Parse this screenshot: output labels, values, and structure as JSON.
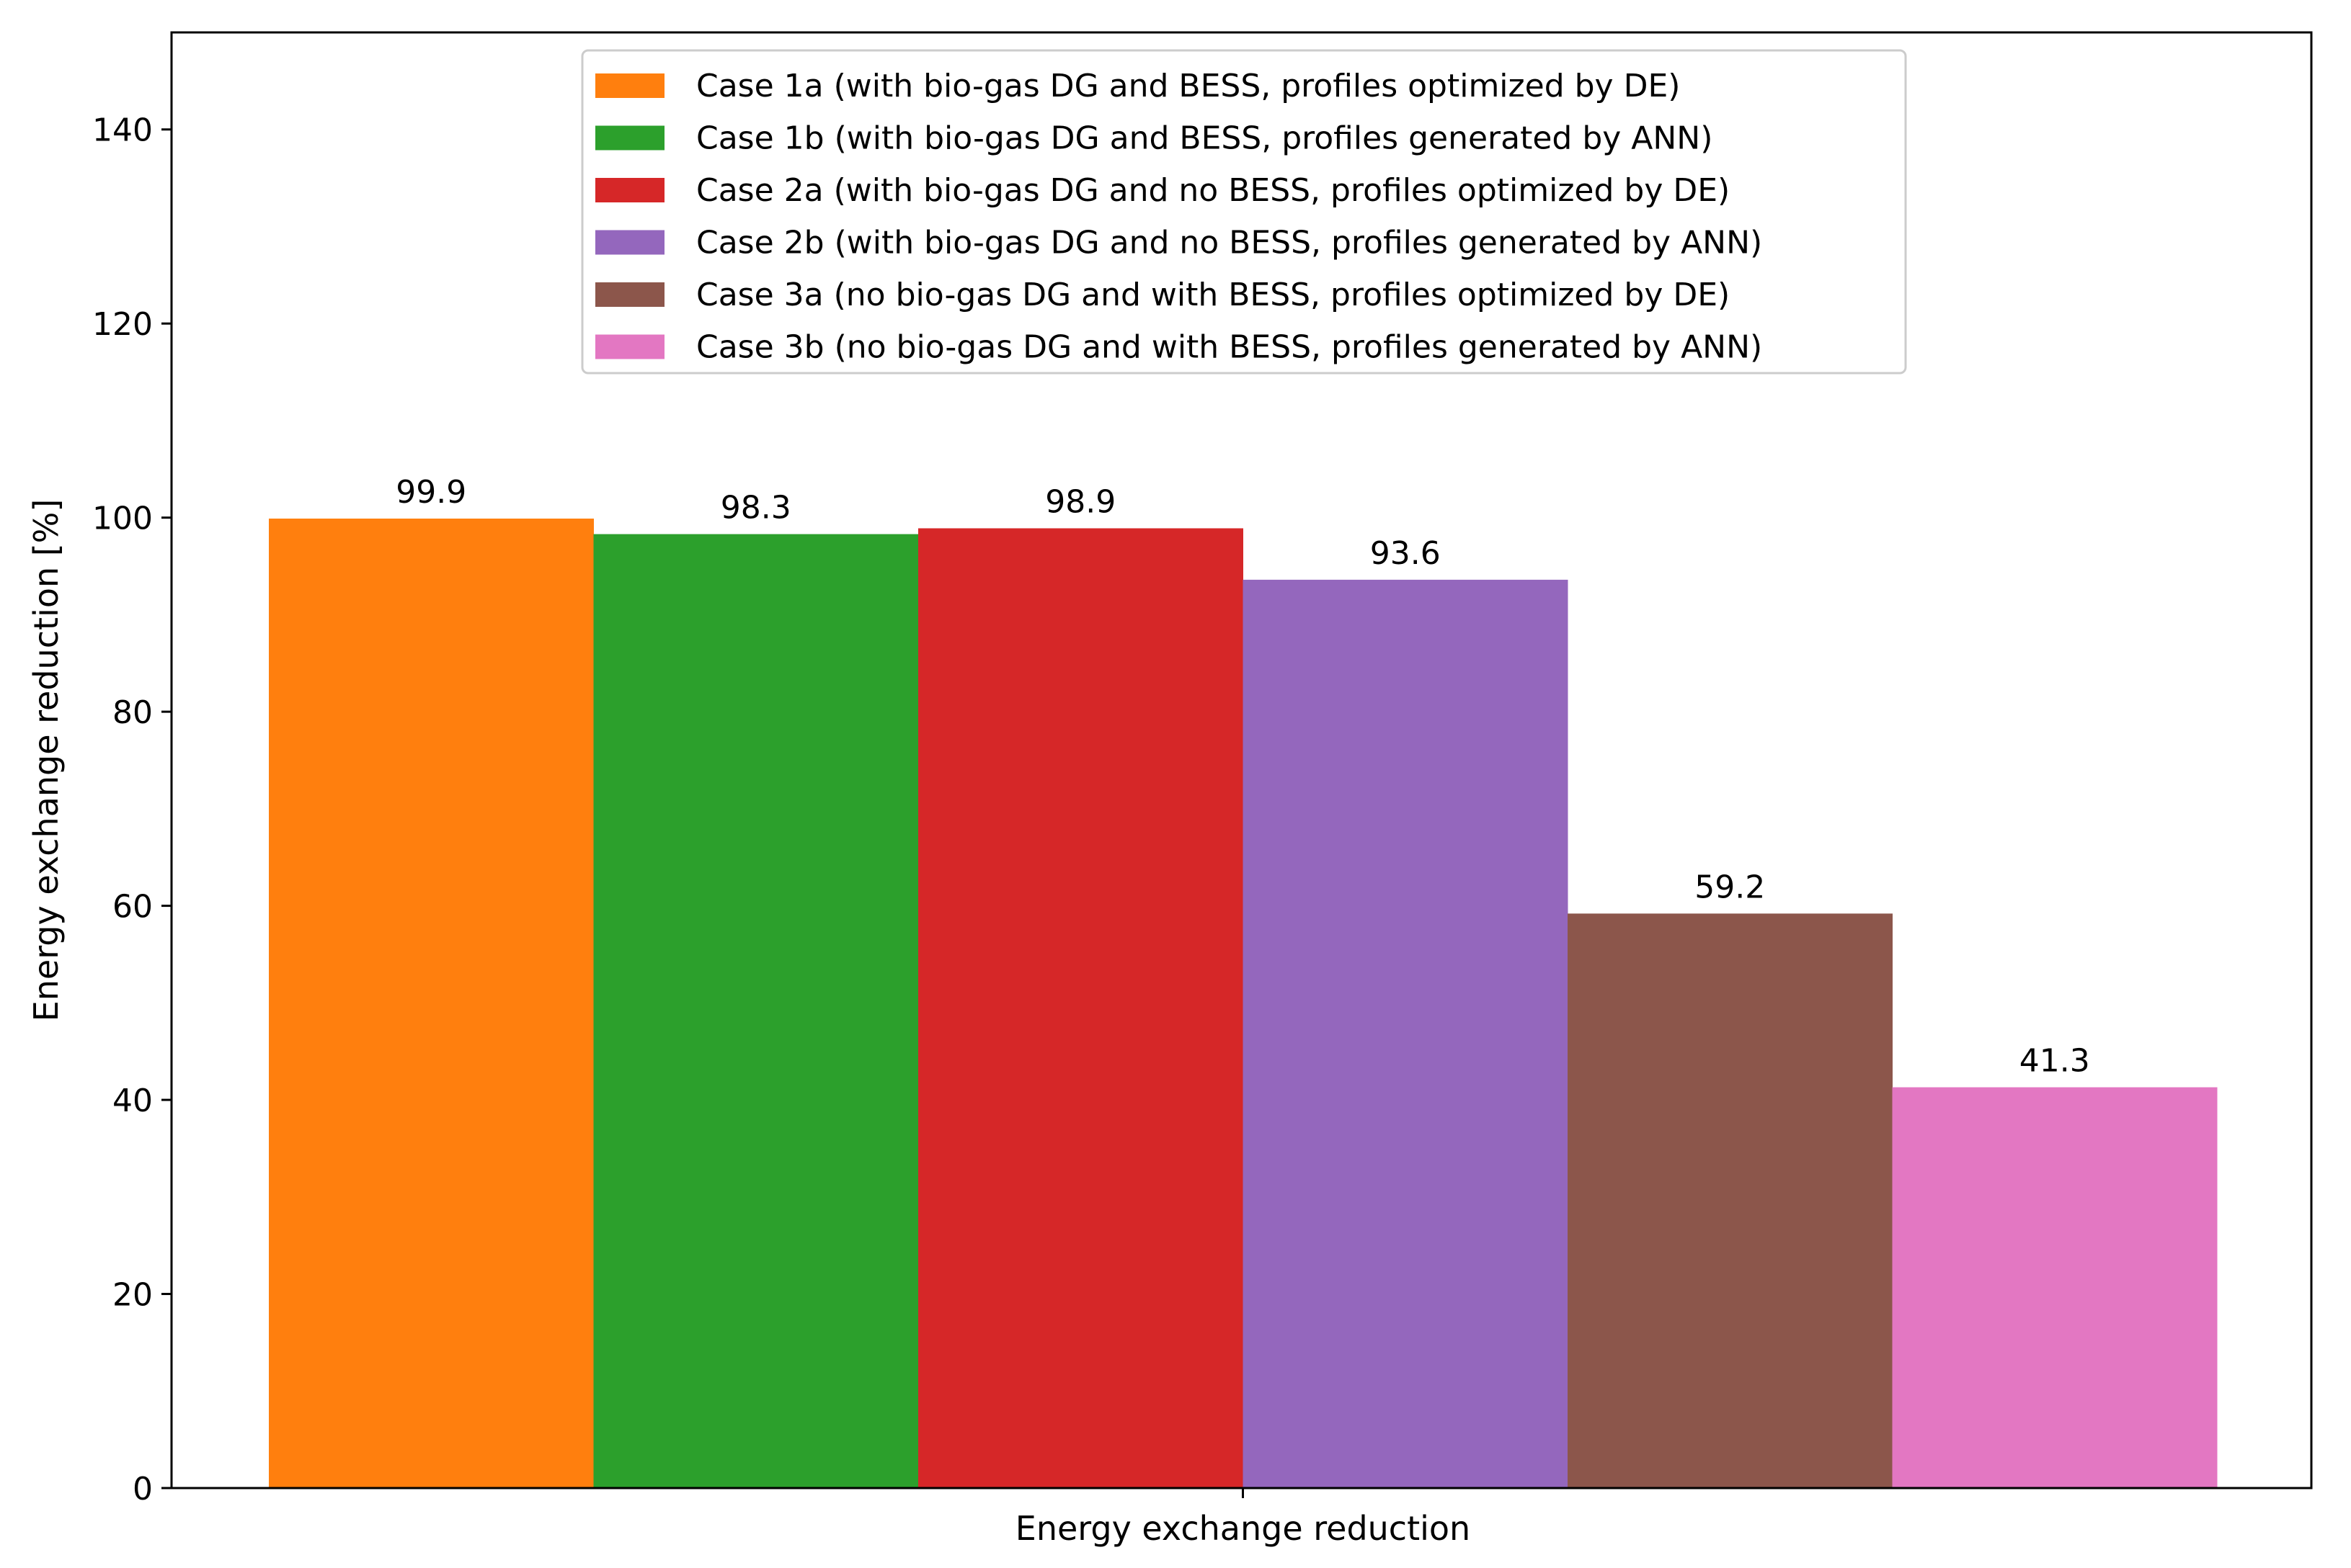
{
  "chart_data": {
    "type": "bar",
    "title": "",
    "xlabel": "Energy exchange reduction",
    "ylabel": "Energy exchange reduction [%]",
    "ylim": [
      0,
      150
    ],
    "yticks": [
      0,
      20,
      40,
      60,
      80,
      100,
      120,
      140
    ],
    "categories": [
      "Energy exchange reduction"
    ],
    "grid": false,
    "legend_position": "top-center",
    "series": [
      {
        "name": "Case 1a (with bio-gas DG and BESS, profiles optimized by DE)",
        "values": [
          99.9
        ],
        "label": "99.9",
        "color": "#ff7f0e"
      },
      {
        "name": "Case 1b (with bio-gas DG and BESS, profiles generated by ANN)",
        "values": [
          98.3
        ],
        "label": "98.3",
        "color": "#2ca02c"
      },
      {
        "name": "Case 2a (with bio-gas DG and no BESS, profiles optimized by DE)",
        "values": [
          98.9
        ],
        "label": "98.9",
        "color": "#d62728"
      },
      {
        "name": "Case 2b (with bio-gas DG and no BESS, profiles generated by ANN)",
        "values": [
          93.6
        ],
        "label": "93.6",
        "color": "#9467bd"
      },
      {
        "name": "Case 3a (no bio-gas DG and with BESS, profiles optimized by DE)",
        "values": [
          59.2
        ],
        "label": "59.2",
        "color": "#8c564b"
      },
      {
        "name": "Case 3b (no bio-gas DG and with BESS, profiles generated by ANN)",
        "values": [
          41.3
        ],
        "label": "41.3",
        "color": "#e377c2"
      }
    ]
  }
}
